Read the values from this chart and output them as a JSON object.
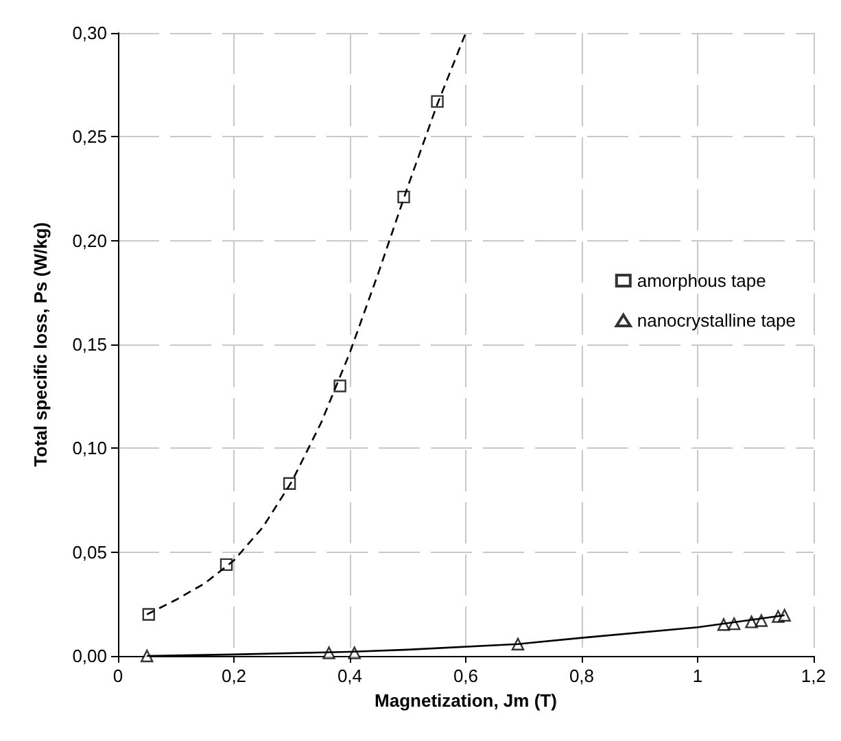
{
  "chart_data": {
    "type": "scatter",
    "xlabel": "Magnetization, Jm (T)",
    "ylabel": "Total specific loss, Ps (W/kg)",
    "xlim": [
      0,
      1.2
    ],
    "xticks": [
      0,
      {
        "value": 0.2,
        "label": "0,2"
      },
      {
        "value": 0.4,
        "label": "0,4"
      },
      {
        "value": 0.6,
        "label": "0,6"
      },
      {
        "value": 0.8,
        "label": "0,8"
      },
      1,
      {
        "value": 1.2,
        "label": "1,2"
      }
    ],
    "ylim": [
      0,
      0.3
    ],
    "yticks": [
      {
        "value": 0,
        "label": "0,00"
      },
      {
        "value": 0.05,
        "label": "0,05"
      },
      {
        "value": 0.1,
        "label": "0,10"
      },
      {
        "value": 0.15,
        "label": "0,15"
      },
      {
        "value": 0.2,
        "label": "0,20"
      },
      {
        "value": 0.25,
        "label": "0,25"
      },
      {
        "value": 0.3,
        "label": "0,30"
      }
    ],
    "grid": true,
    "legend": "right",
    "series": [
      {
        "name": "amorphous tape",
        "marker": "square",
        "color": "#000000",
        "x": [
          0.053,
          0.187,
          0.296,
          0.383,
          0.493,
          0.551
        ],
        "values": [
          0.02,
          0.044,
          0.083,
          0.13,
          0.221,
          0.267
        ]
      },
      {
        "name": "nanocrystalline tape",
        "marker": "triangle",
        "color": "#000000",
        "x": [
          0.05,
          0.364,
          0.408,
          0.69,
          1.045,
          1.063,
          1.093,
          1.11,
          1.139,
          1.15
        ],
        "values": [
          0,
          0.0015,
          0.0015,
          0.0057,
          0.0151,
          0.0155,
          0.0164,
          0.017,
          0.019,
          0.0196
        ]
      },
      {
        "type": "line",
        "marker": "none",
        "line_style": "dashed",
        "color": "#000000",
        "x": [
          0.05,
          0.1,
          0.15,
          0.2,
          0.25,
          0.3,
          0.35,
          0.4,
          0.45,
          0.5,
          0.55,
          0.6
        ],
        "values": [
          0.02,
          0.027,
          0.035,
          0.046,
          0.062,
          0.084,
          0.112,
          0.146,
          0.185,
          0.226,
          0.265,
          0.3
        ]
      },
      {
        "type": "line",
        "marker": "none",
        "line_style": "solid",
        "color": "#000000",
        "x": [
          0.05,
          0.2,
          0.4,
          0.5,
          0.69,
          0.8,
          1.0,
          1.15
        ],
        "values": [
          0,
          0.0007,
          0.002,
          0.003,
          0.0057,
          0.0087,
          0.0138,
          0.0196
        ]
      }
    ]
  }
}
